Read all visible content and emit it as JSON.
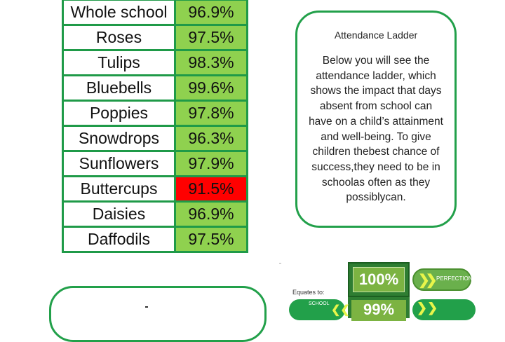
{
  "attendance_table": {
    "rows": [
      {
        "name": "Whole school",
        "pct": "96.9%",
        "highlight": false
      },
      {
        "name": "Roses",
        "pct": "97.5%",
        "highlight": false
      },
      {
        "name": "Tulips",
        "pct": "98.3%",
        "highlight": false
      },
      {
        "name": "Bluebells",
        "pct": "99.6%",
        "highlight": false
      },
      {
        "name": "Poppies",
        "pct": "97.8%",
        "highlight": false
      },
      {
        "name": "Snowdrops",
        "pct": "96.3%",
        "highlight": false
      },
      {
        "name": "Sunflowers",
        "pct": "97.9%",
        "highlight": false
      },
      {
        "name": "Buttercups",
        "pct": "91.5%",
        "highlight": true
      },
      {
        "name": "Daisies",
        "pct": "96.9%",
        "highlight": false
      },
      {
        "name": "Daffodils",
        "pct": "97.5%",
        "highlight": false
      }
    ]
  },
  "info_box": {
    "title": "Attendance Ladder",
    "body": "Below you will see the attendance ladder, which shows the impact that days absent from school can have on a child’s attainment and well-being. To give children thebest chance of success,they need to be in schoolas often as they possiblycan."
  },
  "ladder": {
    "equates_label": "Equates to:",
    "top_value": "100%",
    "top_label": "PERFECTION",
    "second_value": "99%",
    "school_label": "SCHOOL"
  },
  "colors": {
    "green_border": "#1f9a48",
    "cell_green": "#8fd14f",
    "cell_red": "#ff0000"
  }
}
